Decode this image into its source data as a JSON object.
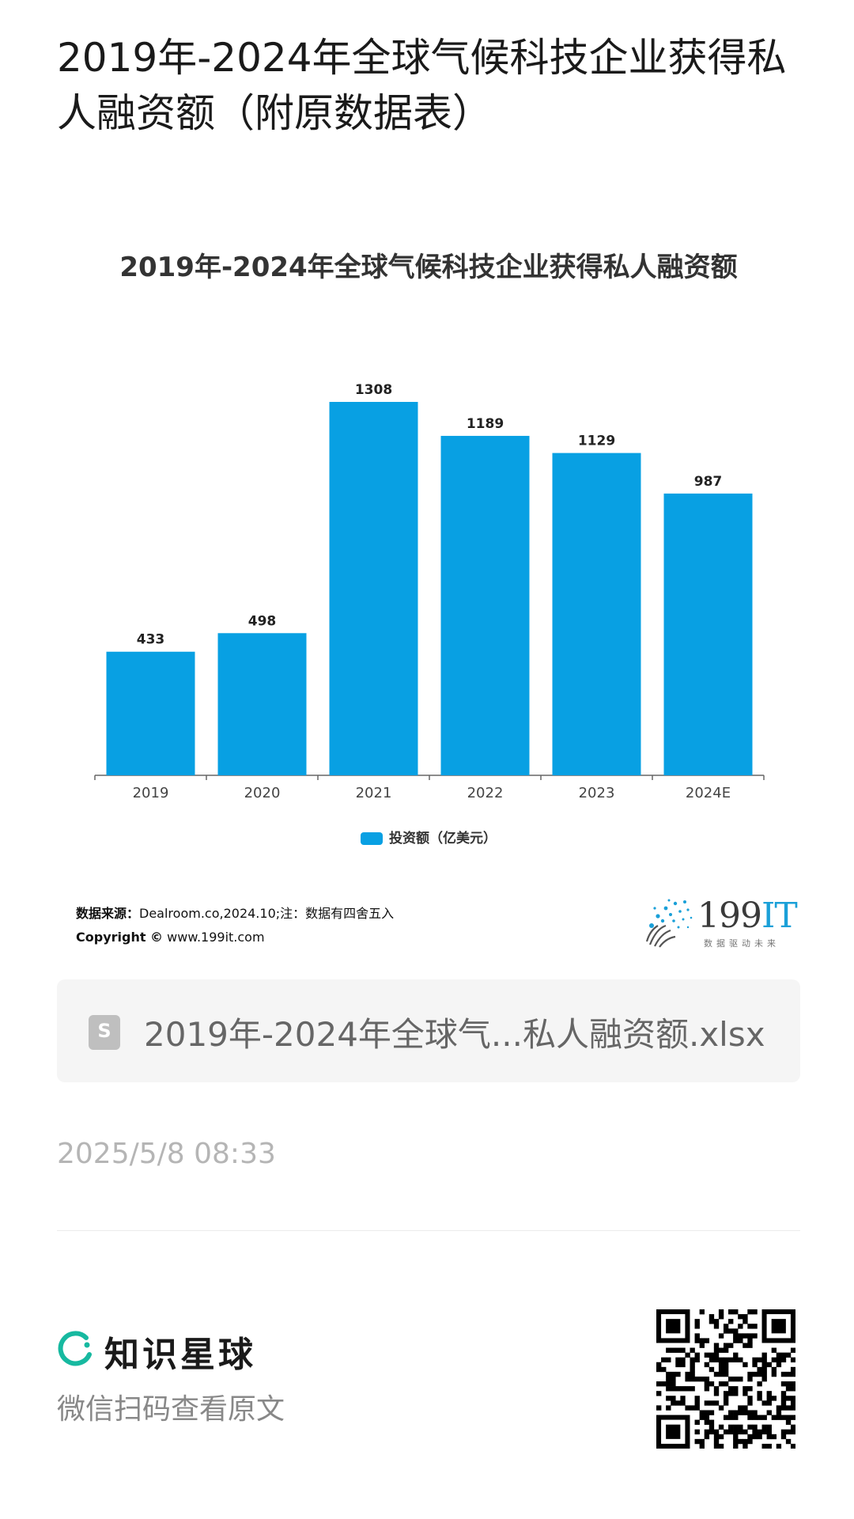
{
  "page": {
    "title": "2019年-2024年全球气候科技企业获得私人融资额（附原数据表）"
  },
  "chart_data": {
    "type": "bar",
    "title": "2019年-2024年全球气候科技企业获得私人融资额",
    "categories": [
      "2019",
      "2020",
      "2021",
      "2022",
      "2023",
      "2024E"
    ],
    "series": [
      {
        "name": "投资额（亿美元）",
        "values": [
          433,
          498,
          1308,
          1189,
          1129,
          987
        ]
      }
    ],
    "value_labels": [
      "433",
      "498",
      "1308",
      "1189",
      "1129",
      "987"
    ],
    "ylim": [
      0,
      1308
    ],
    "grid": false,
    "legend_position": "bottom",
    "bar_color": "#08a0e3"
  },
  "source": {
    "label": "数据来源：",
    "text": "Dealroom.co,2024.10;注：数据有四舍五入",
    "copyright_label": "Copyright ©",
    "copyright_text": " www.199it.com"
  },
  "logo": {
    "main": "199",
    "accent": "IT",
    "tagline": "数据驱动未来"
  },
  "file": {
    "name": "2019年-2024年全球气...私人融资额.xlsx",
    "icon": "spreadsheet-icon"
  },
  "timestamp": "2025/5/8 08:33",
  "footer": {
    "brand": "知识星球",
    "cta": "微信扫码查看原文",
    "brand_color": "#17b9a0"
  }
}
